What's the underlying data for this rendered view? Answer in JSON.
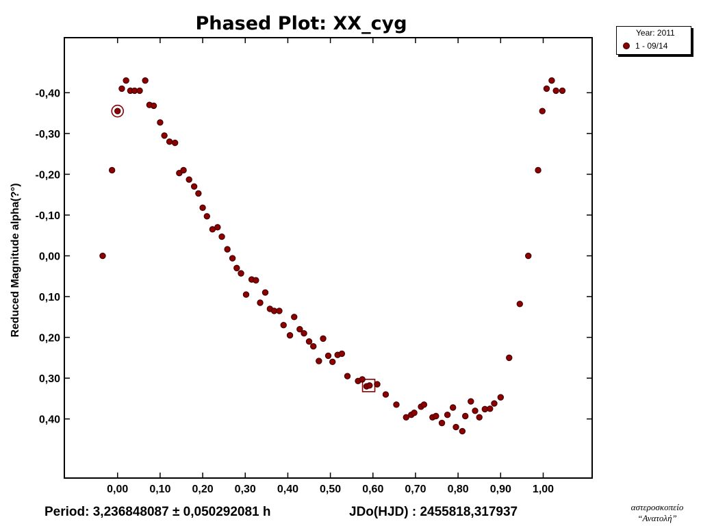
{
  "colors": {
    "marker_fill": "#8b0000",
    "marker_stroke": "#3a0000",
    "axis": "#000000",
    "background": "#ffffff"
  },
  "legend": {
    "title": "Year: 2011",
    "entry": "1 - 09/14"
  },
  "footer": {
    "period": "Period: 3,236848087 ± 0,050292081 h",
    "epoch": "JDo(HJD) : 2455818,317937"
  },
  "credit": {
    "line1": "αστεροσκοπείο",
    "line2": "“Ανατολή”"
  },
  "chart_data": {
    "type": "scatter",
    "title": "Phased Plot: XX_cyg",
    "xlabel": "",
    "ylabel": "Reduced Magnitude alpha(?°)",
    "xlim": [
      -0.125,
      1.115
    ],
    "ylim": [
      0.545,
      -0.535
    ],
    "y_inverted": true,
    "x_ticks": [
      0.0,
      0.1,
      0.2,
      0.3,
      0.4,
      0.5,
      0.6,
      0.7,
      0.8,
      0.9,
      1.0
    ],
    "x_tick_labels": [
      "0,00",
      "0,10",
      "0,20",
      "0,30",
      "0,40",
      "0,50",
      "0,60",
      "0,70",
      "0,80",
      "0,90",
      "1,00"
    ],
    "y_ticks": [
      -0.4,
      -0.3,
      -0.2,
      -0.1,
      0.0,
      0.1,
      0.2,
      0.3,
      0.4
    ],
    "y_tick_labels": [
      "-0,40",
      "-0,30",
      "-0,20",
      "-0,10",
      "0,00",
      "0,10",
      "0,20",
      "0,30",
      "0,40"
    ],
    "grid": false,
    "legend_position": "top-right",
    "series": [
      {
        "name": "1 - 09/14",
        "points": [
          [
            -0.035,
            0.0
          ],
          [
            -0.013,
            -0.21
          ],
          [
            0.0,
            -0.355
          ],
          [
            0.01,
            -0.41
          ],
          [
            0.02,
            -0.43
          ],
          [
            0.03,
            -0.405
          ],
          [
            0.04,
            -0.405
          ],
          [
            0.052,
            -0.405
          ],
          [
            0.065,
            -0.43
          ],
          [
            0.075,
            -0.37
          ],
          [
            0.085,
            -0.368
          ],
          [
            0.1,
            -0.327
          ],
          [
            0.11,
            -0.295
          ],
          [
            0.122,
            -0.28
          ],
          [
            0.135,
            -0.277
          ],
          [
            0.145,
            -0.203
          ],
          [
            0.155,
            -0.21
          ],
          [
            0.168,
            -0.187
          ],
          [
            0.18,
            -0.17
          ],
          [
            0.19,
            -0.153
          ],
          [
            0.2,
            -0.118
          ],
          [
            0.21,
            -0.097
          ],
          [
            0.223,
            -0.065
          ],
          [
            0.235,
            -0.07
          ],
          [
            0.245,
            -0.047
          ],
          [
            0.258,
            -0.016
          ],
          [
            0.27,
            0.006
          ],
          [
            0.28,
            0.03
          ],
          [
            0.29,
            0.043
          ],
          [
            0.302,
            0.095
          ],
          [
            0.315,
            0.058
          ],
          [
            0.325,
            0.06
          ],
          [
            0.335,
            0.115
          ],
          [
            0.347,
            0.09
          ],
          [
            0.358,
            0.13
          ],
          [
            0.368,
            0.135
          ],
          [
            0.38,
            0.135
          ],
          [
            0.39,
            0.17
          ],
          [
            0.405,
            0.195
          ],
          [
            0.415,
            0.15
          ],
          [
            0.428,
            0.18
          ],
          [
            0.438,
            0.19
          ],
          [
            0.45,
            0.21
          ],
          [
            0.46,
            0.222
          ],
          [
            0.473,
            0.258
          ],
          [
            0.483,
            0.203
          ],
          [
            0.495,
            0.245
          ],
          [
            0.505,
            0.26
          ],
          [
            0.517,
            0.243
          ],
          [
            0.527,
            0.24
          ],
          [
            0.54,
            0.295
          ],
          [
            0.565,
            0.307
          ],
          [
            0.575,
            0.303
          ],
          [
            0.585,
            0.32
          ],
          [
            0.592,
            0.318
          ],
          [
            0.61,
            0.315
          ],
          [
            0.63,
            0.34
          ],
          [
            0.655,
            0.365
          ],
          [
            0.678,
            0.396
          ],
          [
            0.69,
            0.39
          ],
          [
            0.697,
            0.385
          ],
          [
            0.713,
            0.37
          ],
          [
            0.72,
            0.365
          ],
          [
            0.74,
            0.396
          ],
          [
            0.748,
            0.393
          ],
          [
            0.762,
            0.41
          ],
          [
            0.775,
            0.39
          ],
          [
            0.788,
            0.372
          ],
          [
            0.795,
            0.42
          ],
          [
            0.81,
            0.43
          ],
          [
            0.817,
            0.393
          ],
          [
            0.83,
            0.357
          ],
          [
            0.84,
            0.38
          ],
          [
            0.85,
            0.396
          ],
          [
            0.863,
            0.376
          ],
          [
            0.875,
            0.375
          ],
          [
            0.885,
            0.362
          ],
          [
            0.9,
            0.347
          ],
          [
            0.92,
            0.25
          ],
          [
            0.945,
            0.118
          ],
          [
            0.965,
            0.0
          ],
          [
            0.988,
            -0.21
          ],
          [
            0.998,
            -0.355
          ],
          [
            1.008,
            -0.41
          ],
          [
            1.02,
            -0.43
          ],
          [
            1.03,
            -0.405
          ],
          [
            1.045,
            -0.405
          ]
        ]
      }
    ],
    "annotations": [
      {
        "kind": "circle",
        "x": 0.0,
        "y": -0.355
      },
      {
        "kind": "square",
        "x": 0.59,
        "y": 0.318
      }
    ]
  }
}
